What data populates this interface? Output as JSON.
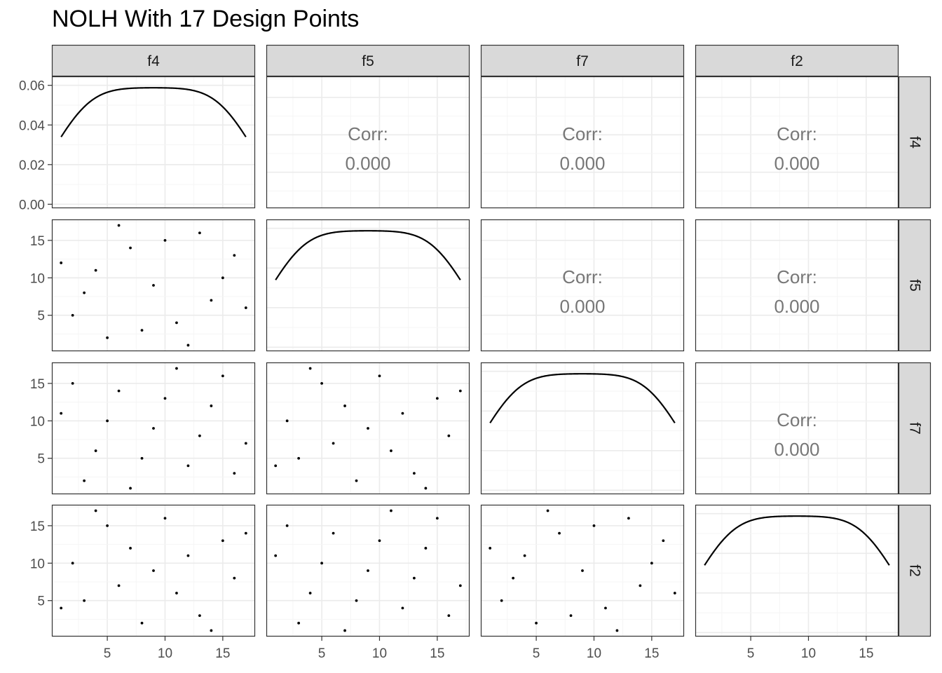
{
  "title": "NOLH With 17 Design Points",
  "variables": [
    "f4",
    "f5",
    "f7",
    "f2"
  ],
  "chart_data": {
    "type": "scatter",
    "kind": "scatterplot-matrix",
    "title": "NOLH With 17 Design Points",
    "variables": [
      "f4",
      "f5",
      "f7",
      "f2"
    ],
    "design_points": {
      "f4": [
        1,
        2,
        3,
        4,
        5,
        6,
        7,
        8,
        9,
        10,
        11,
        12,
        13,
        14,
        15,
        16,
        17
      ],
      "f5": [
        12,
        5,
        8,
        11,
        2,
        17,
        14,
        3,
        9,
        15,
        4,
        1,
        16,
        7,
        10,
        13,
        6
      ],
      "f7": [
        11,
        15,
        2,
        6,
        10,
        14,
        1,
        5,
        9,
        13,
        17,
        4,
        8,
        12,
        16,
        3,
        7
      ],
      "f2": [
        4,
        10,
        5,
        17,
        15,
        7,
        12,
        2,
        9,
        16,
        6,
        11,
        3,
        1,
        13,
        8,
        14
      ]
    },
    "correlation_label": "Corr:",
    "correlations": {
      "f4-f5": "0.000",
      "f4-f7": "0.000",
      "f4-f2": "0.000",
      "f5-f7": "0.000",
      "f5-f2": "0.000",
      "f7-f2": "0.000"
    },
    "density_axis": {
      "ylim": [
        -0.002,
        0.0645
      ],
      "ticks": [
        0.0,
        0.02,
        0.04,
        0.06
      ],
      "tick_labels": [
        "0.00",
        "0.02",
        "0.04",
        "0.06"
      ]
    },
    "value_axis": {
      "lim": [
        0.2,
        17.8
      ],
      "ticks": [
        5,
        10,
        15
      ],
      "tick_labels": [
        "5",
        "10",
        "15"
      ]
    },
    "grid": true,
    "theme": "bw",
    "colors": {
      "strip_fill": "#d9d9d9",
      "grid_major": "#ebebeb",
      "grid_minor": "#f5f5f5",
      "panel_border": "#333333",
      "corr_text": "#777777",
      "line": "#000000"
    }
  }
}
